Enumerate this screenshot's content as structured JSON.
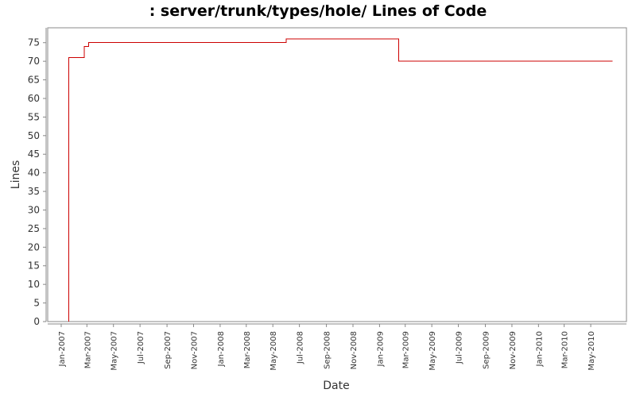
{
  "chart_data": {
    "type": "line",
    "title": ": server/trunk/types/hole/ Lines of Code",
    "xlabel": "Date",
    "ylabel": "Lines",
    "x_axis_type": "date",
    "xlim": [
      "2006-12-01",
      "2010-07-22"
    ],
    "ylim": [
      0,
      79
    ],
    "y_ticks": [
      0,
      5,
      10,
      15,
      20,
      25,
      30,
      35,
      40,
      45,
      50,
      55,
      60,
      65,
      70,
      75
    ],
    "x_ticks": [
      {
        "date": "2007-01-01",
        "label": "Jan-2007"
      },
      {
        "date": "2007-03-01",
        "label": "Mar-2007"
      },
      {
        "date": "2007-05-01",
        "label": "May-2007"
      },
      {
        "date": "2007-07-01",
        "label": "Jul-2007"
      },
      {
        "date": "2007-09-01",
        "label": "Sep-2007"
      },
      {
        "date": "2007-11-01",
        "label": "Nov-2007"
      },
      {
        "date": "2008-01-01",
        "label": "Jan-2008"
      },
      {
        "date": "2008-03-01",
        "label": "Mar-2008"
      },
      {
        "date": "2008-05-01",
        "label": "May-2008"
      },
      {
        "date": "2008-07-01",
        "label": "Jul-2008"
      },
      {
        "date": "2008-09-01",
        "label": "Sep-2008"
      },
      {
        "date": "2008-11-01",
        "label": "Nov-2008"
      },
      {
        "date": "2009-01-01",
        "label": "Jan-2009"
      },
      {
        "date": "2009-03-01",
        "label": "Mar-2009"
      },
      {
        "date": "2009-05-01",
        "label": "May-2009"
      },
      {
        "date": "2009-07-01",
        "label": "Jul-2009"
      },
      {
        "date": "2009-09-01",
        "label": "Sep-2009"
      },
      {
        "date": "2009-11-01",
        "label": "Nov-2009"
      },
      {
        "date": "2010-01-01",
        "label": "Jan-2010"
      },
      {
        "date": "2010-03-01",
        "label": "Mar-2010"
      },
      {
        "date": "2010-05-01",
        "label": "May-2010"
      }
    ],
    "series": [
      {
        "color": "#cc0000",
        "step": true,
        "points": [
          {
            "x": "2007-01-18",
            "y": 0
          },
          {
            "x": "2007-01-18",
            "y": 71
          },
          {
            "x": "2007-02-23",
            "y": 71
          },
          {
            "x": "2007-02-23",
            "y": 74
          },
          {
            "x": "2007-03-05",
            "y": 74
          },
          {
            "x": "2007-03-05",
            "y": 75
          },
          {
            "x": "2008-06-01",
            "y": 75
          },
          {
            "x": "2008-06-01",
            "y": 76
          },
          {
            "x": "2009-02-14",
            "y": 76
          },
          {
            "x": "2009-02-14",
            "y": 70
          },
          {
            "x": "2010-06-20",
            "y": 70
          }
        ]
      }
    ],
    "grid": false,
    "legend": "none",
    "colors": {
      "background": "#ffffff",
      "plot_border": "#888888",
      "axis_text": "#333333",
      "title": "#000000"
    }
  }
}
